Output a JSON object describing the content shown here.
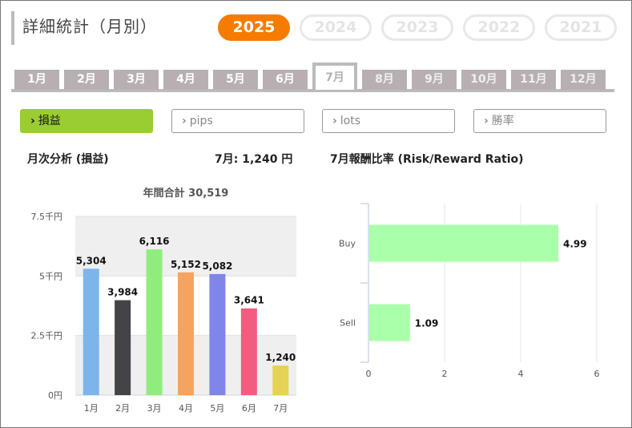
{
  "title": "詳細統計（月別）",
  "years": [
    {
      "label": "2025",
      "active": true
    },
    {
      "label": "2024",
      "active": false
    },
    {
      "label": "2023",
      "active": false
    },
    {
      "label": "2022",
      "active": false
    },
    {
      "label": "2021",
      "active": false
    }
  ],
  "months": [
    {
      "label": "1月",
      "state": "normal"
    },
    {
      "label": "2月",
      "state": "normal"
    },
    {
      "label": "3月",
      "state": "normal"
    },
    {
      "label": "4月",
      "state": "normal"
    },
    {
      "label": "5月",
      "state": "normal"
    },
    {
      "label": "6月",
      "state": "normal"
    },
    {
      "label": "7月",
      "state": "active"
    },
    {
      "label": "8月",
      "state": "disabled"
    },
    {
      "label": "9月",
      "state": "disabled"
    },
    {
      "label": "10月",
      "state": "disabled"
    },
    {
      "label": "11月",
      "state": "disabled"
    },
    {
      "label": "12月",
      "state": "disabled"
    }
  ],
  "metric_tabs": [
    {
      "label": "損益",
      "active": true
    },
    {
      "label": "pips",
      "active": false
    },
    {
      "label": "lots",
      "active": false
    },
    {
      "label": "勝率",
      "active": false
    }
  ],
  "monthly": {
    "title": "月次分析 (損益)",
    "current_label": "7月:  1,240 円"
  },
  "rr": {
    "title": "7月報酬比率 (Risk/Reward Ratio)"
  },
  "colors": {
    "accent": "#f57c00",
    "active_tab": "#9acd32",
    "month_tab": "#b8b0b0",
    "rr_bar": "#aaffaa"
  },
  "chart_data": [
    {
      "type": "bar",
      "title": "年間合計 30,519",
      "categories": [
        "1月",
        "2月",
        "3月",
        "4月",
        "5月",
        "6月",
        "7月"
      ],
      "values": [
        5304,
        3984,
        6116,
        5152,
        5082,
        3641,
        1240
      ],
      "value_labels": [
        "5,304",
        "3,984",
        "6,116",
        "5,152",
        "5,082",
        "3,641",
        "1,240"
      ],
      "colors": [
        "#7cb5ec",
        "#434348",
        "#90ed7d",
        "#f7a35c",
        "#8085e9",
        "#f15c80",
        "#e4d354"
      ],
      "yticks": [
        0,
        2500,
        5000,
        7500
      ],
      "ytick_labels": [
        "0円",
        "2.5千円",
        "5千円",
        "7.5千円"
      ],
      "ylim": [
        0,
        7500
      ],
      "grid": "alternating bands",
      "legend": "none"
    },
    {
      "type": "bar",
      "orientation": "horizontal",
      "categories": [
        "Buy",
        "Sell"
      ],
      "values": [
        4.99,
        1.09
      ],
      "value_labels": [
        "4.99",
        "1.09"
      ],
      "xticks": [
        0,
        2,
        4,
        6
      ],
      "xlim": [
        0,
        6
      ],
      "grid": true,
      "legend": "none"
    }
  ]
}
